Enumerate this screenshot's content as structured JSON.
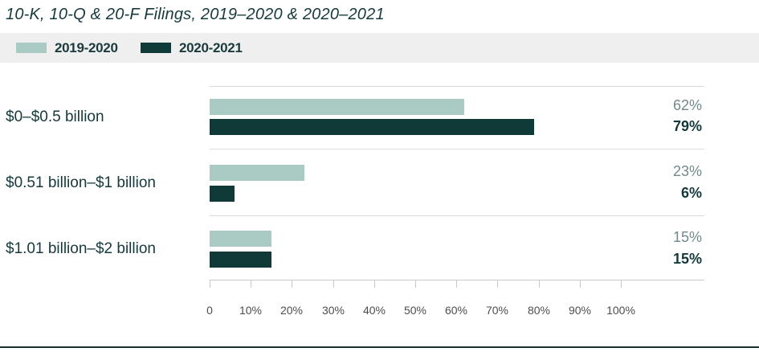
{
  "title": "10-K, 10-Q & 20-F Filings, 2019–2020 & 2020–2021",
  "legend": {
    "items": [
      {
        "label": "2019-2020",
        "color": "#A9CBC4"
      },
      {
        "label": "2020-2021",
        "color": "#0F3A38"
      }
    ]
  },
  "colors": {
    "series_2019_2020": "#A9CBC4",
    "series_2020_2021": "#0F3A38",
    "title_text": "#16393C",
    "light_value_text": "#72898B",
    "dark_value_text": "#14393C",
    "legend_background": "#EFEFEF",
    "gridline": "#DCDCDC",
    "axis": "#C9C9C9"
  },
  "chart_data": {
    "type": "bar",
    "orientation": "horizontal",
    "title": "10-K, 10-Q & 20-F Filings, 2019–2020 & 2020–2021",
    "categories": [
      "$0–$0.5 billion",
      "$0.51 billion–$1 billion",
      "$1.01 billion–$2 billion"
    ],
    "series": [
      {
        "name": "2019-2020",
        "color": "#A9CBC4",
        "values": [
          62,
          23,
          15
        ]
      },
      {
        "name": "2020-2021",
        "color": "#0F3A38",
        "values": [
          79,
          6,
          15
        ]
      }
    ],
    "value_labels": [
      [
        "62%",
        "79%"
      ],
      [
        "23%",
        "6%"
      ],
      [
        "15%",
        "15%"
      ]
    ],
    "x_ticks": [
      "0",
      "10%",
      "20%",
      "30%",
      "40%",
      "50%",
      "60%",
      "70%",
      "80%",
      "90%",
      "100%"
    ],
    "xlim": [
      0,
      100
    ],
    "xlabel": "",
    "ylabel": "",
    "grid": "horizontal-row-separators",
    "legend_position": "top"
  }
}
